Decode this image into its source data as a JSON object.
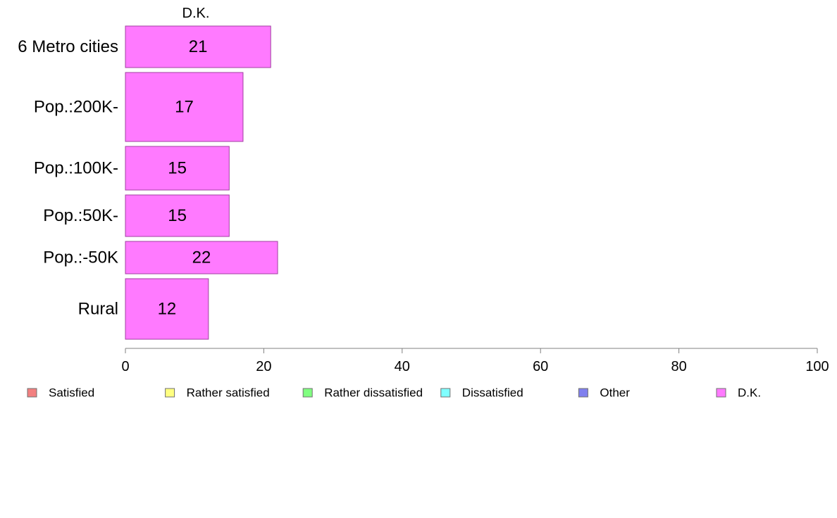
{
  "chart_data": {
    "type": "bar",
    "orientation": "horizontal",
    "title": "D.K.",
    "categories": [
      "6 Metro cities",
      "Pop.:200K-",
      "Pop.:100K-",
      "Pop.:50K-",
      "Pop.:-50K",
      "Rural"
    ],
    "series": [
      {
        "name": "D.K.",
        "values": [
          21,
          17,
          15,
          15,
          22,
          12
        ],
        "color": "#ff7aff"
      }
    ],
    "data_labels": [
      "21",
      "17",
      "15",
      "15",
      "22",
      "12"
    ],
    "xlim": [
      0,
      100
    ],
    "xticks": [
      0,
      20,
      40,
      60,
      80,
      100
    ],
    "xtick_labels": [
      "0",
      "20",
      "40",
      "60",
      "80",
      "100"
    ],
    "grid": false,
    "legend_position": "bottom",
    "legend": [
      {
        "label": "Satisfied",
        "color": "#f28080"
      },
      {
        "label": "Rather satisfied",
        "color": "#ffff80"
      },
      {
        "label": "Rather dissatisfied",
        "color": "#80ff80"
      },
      {
        "label": "Dissatisfied",
        "color": "#80ffff"
      },
      {
        "label": "Other",
        "color": "#8080ee"
      },
      {
        "label": "D.K.",
        "color": "#ff7aff"
      }
    ]
  },
  "colors": {
    "bar_stroke": "#a040a0",
    "axis": "#808080",
    "legend_stroke": "#707070"
  }
}
